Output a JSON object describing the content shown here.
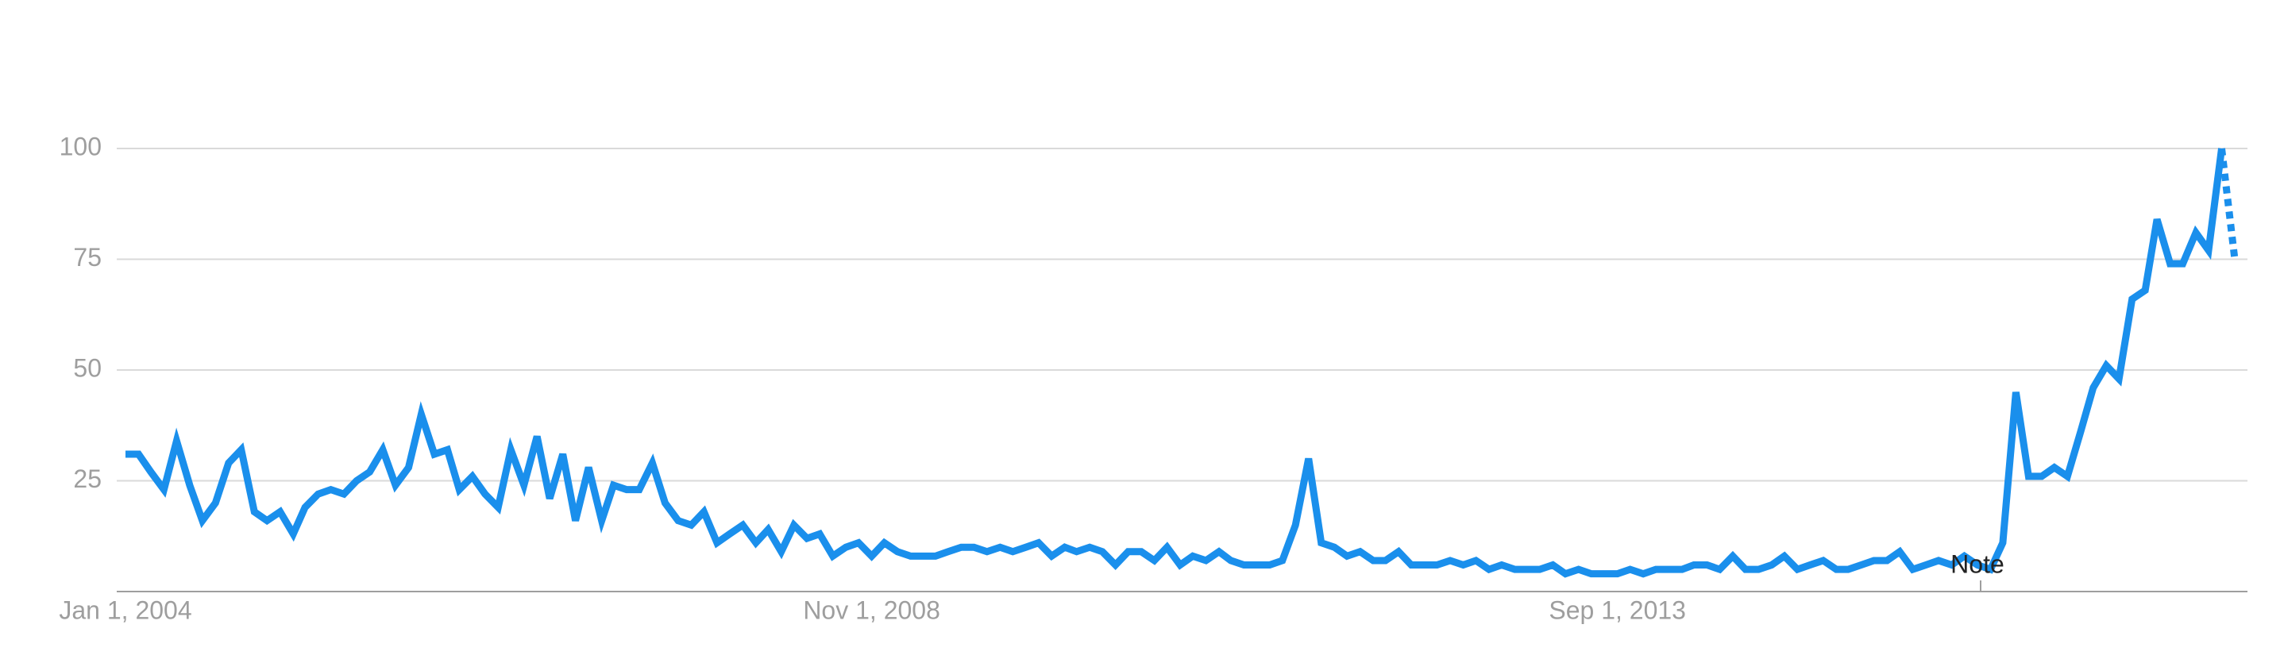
{
  "chart_data": {
    "type": "line",
    "x": [
      "2004-01-01",
      "2004-02-01",
      "2004-03-01",
      "2004-04-01",
      "2004-05-01",
      "2004-06-01",
      "2004-07-01",
      "2004-08-01",
      "2004-09-01",
      "2004-10-01",
      "2004-11-01",
      "2004-12-01",
      "2005-01-01",
      "2005-02-01",
      "2005-03-01",
      "2005-04-01",
      "2005-05-01",
      "2005-06-01",
      "2005-07-01",
      "2005-08-01",
      "2005-09-01",
      "2005-10-01",
      "2005-11-01",
      "2005-12-01",
      "2006-01-01",
      "2006-02-01",
      "2006-03-01",
      "2006-04-01",
      "2006-05-01",
      "2006-06-01",
      "2006-07-01",
      "2006-08-01",
      "2006-09-01",
      "2006-10-01",
      "2006-11-01",
      "2006-12-01",
      "2007-01-01",
      "2007-02-01",
      "2007-03-01",
      "2007-04-01",
      "2007-05-01",
      "2007-06-01",
      "2007-07-01",
      "2007-08-01",
      "2007-09-01",
      "2007-10-01",
      "2007-11-01",
      "2007-12-01",
      "2008-01-01",
      "2008-02-01",
      "2008-03-01",
      "2008-04-01",
      "2008-05-01",
      "2008-06-01",
      "2008-07-01",
      "2008-08-01",
      "2008-09-01",
      "2008-10-01",
      "2008-11-01",
      "2008-12-01",
      "2009-01-01",
      "2009-02-01",
      "2009-03-01",
      "2009-04-01",
      "2009-05-01",
      "2009-06-01",
      "2009-07-01",
      "2009-08-01",
      "2009-09-01",
      "2009-10-01",
      "2009-11-01",
      "2009-12-01",
      "2010-01-01",
      "2010-02-01",
      "2010-03-01",
      "2010-04-01",
      "2010-05-01",
      "2010-06-01",
      "2010-07-01",
      "2010-08-01",
      "2010-09-01",
      "2010-10-01",
      "2010-11-01",
      "2010-12-01",
      "2011-01-01",
      "2011-02-01",
      "2011-03-01",
      "2011-04-01",
      "2011-05-01",
      "2011-06-01",
      "2011-07-01",
      "2011-08-01",
      "2011-09-01",
      "2011-10-01",
      "2011-11-01",
      "2011-12-01",
      "2012-01-01",
      "2012-02-01",
      "2012-03-01",
      "2012-04-01",
      "2012-05-01",
      "2012-06-01",
      "2012-07-01",
      "2012-08-01",
      "2012-09-01",
      "2012-10-01",
      "2012-11-01",
      "2012-12-01",
      "2013-01-01",
      "2013-02-01",
      "2013-03-01",
      "2013-04-01",
      "2013-05-01",
      "2013-06-01",
      "2013-07-01",
      "2013-08-01",
      "2013-09-01",
      "2013-10-01",
      "2013-11-01",
      "2013-12-01",
      "2014-01-01",
      "2014-02-01",
      "2014-03-01",
      "2014-04-01",
      "2014-05-01",
      "2014-06-01",
      "2014-07-01",
      "2014-08-01",
      "2014-09-01",
      "2014-10-01",
      "2014-11-01",
      "2014-12-01",
      "2015-01-01",
      "2015-02-01",
      "2015-03-01",
      "2015-04-01",
      "2015-05-01",
      "2015-06-01",
      "2015-07-01",
      "2015-08-01",
      "2015-09-01",
      "2015-10-01",
      "2015-11-01",
      "2015-12-01",
      "2016-01-01",
      "2016-02-01",
      "2016-03-01",
      "2016-04-01",
      "2016-05-01",
      "2016-06-01",
      "2016-07-01",
      "2016-08-01",
      "2016-09-01",
      "2016-10-01",
      "2016-11-01",
      "2016-12-01",
      "2017-01-01",
      "2017-02-01",
      "2017-03-01",
      "2017-04-01",
      "2017-05-01",
      "2017-06-01",
      "2017-07-01",
      "2017-08-01",
      "2017-09-01"
    ],
    "series": [
      {
        "color": "#1a8fec",
        "values": [
          31,
          31,
          27,
          23,
          34,
          24,
          16,
          20,
          29,
          32,
          18,
          16,
          18,
          13,
          19,
          22,
          23,
          22,
          25,
          27,
          32,
          24,
          28,
          40,
          31,
          32,
          23,
          26,
          22,
          19,
          32,
          24,
          35,
          21,
          31,
          16,
          28,
          16,
          24,
          23,
          23,
          29,
          20,
          16,
          15,
          18,
          11,
          13,
          15,
          11,
          14,
          9,
          15,
          12,
          13,
          8,
          10,
          11,
          8,
          11,
          9,
          8,
          8,
          8,
          9,
          10,
          10,
          9,
          10,
          9,
          10,
          11,
          8,
          10,
          9,
          10,
          9,
          6,
          9,
          9,
          7,
          10,
          6,
          8,
          7,
          9,
          7,
          6,
          6,
          6,
          7,
          15,
          30,
          11,
          10,
          8,
          9,
          7,
          7,
          9,
          6,
          6,
          6,
          7,
          6,
          7,
          5,
          6,
          5,
          5,
          5,
          6,
          4,
          5,
          4,
          4,
          4,
          5,
          4,
          5,
          5,
          5,
          6,
          6,
          5,
          8,
          5,
          5,
          6,
          8,
          5,
          6,
          7,
          5,
          5,
          6,
          7,
          7,
          9,
          5,
          6,
          7,
          6,
          8,
          6,
          5,
          11,
          45,
          26,
          26,
          28,
          26,
          36,
          46,
          51,
          48,
          66,
          68,
          84,
          74,
          74,
          81,
          77,
          100,
          75
        ]
      }
    ],
    "xlim": [
      "2004-01-01",
      "2017-09-01"
    ],
    "xticks": [
      {
        "value": "2004-01-01",
        "label": "Jan 1, 2004"
      },
      {
        "value": "2008-11-01",
        "label": "Nov 1, 2008"
      },
      {
        "value": "2013-09-01",
        "label": "Sep 1, 2013"
      }
    ],
    "ylim": [
      0,
      100
    ],
    "yticks": [
      25,
      50,
      75,
      100
    ],
    "grid": true,
    "annotations": [
      {
        "text": "Note",
        "x": "2016-01-01"
      }
    ]
  }
}
